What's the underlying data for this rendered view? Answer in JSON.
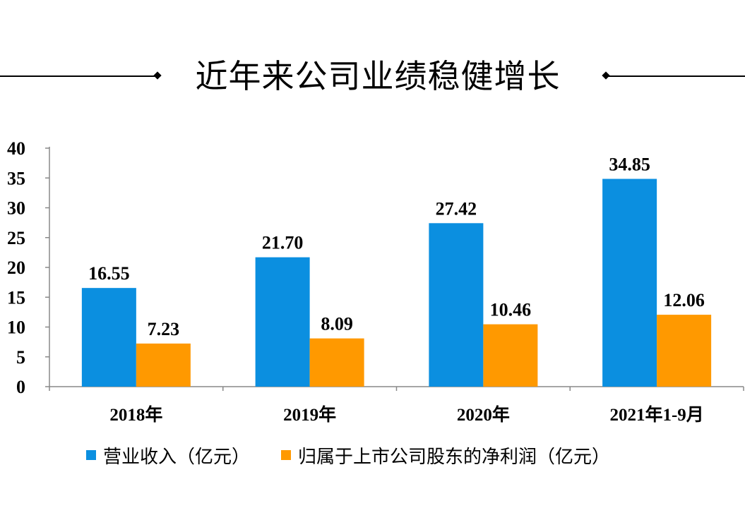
{
  "title": "近年来公司业绩稳健增长",
  "colors": {
    "revenue": "#0b8fe0",
    "profit": "#ff9900",
    "axis": "#888888"
  },
  "chart_data": {
    "type": "bar",
    "categories": [
      "2018年",
      "2019年",
      "2020年",
      "2021年1-9月"
    ],
    "series": [
      {
        "name": "营业收入（亿元）",
        "values": [
          16.55,
          21.7,
          27.42,
          34.85
        ],
        "labels": [
          "16.55",
          "21.70",
          "27.42",
          "34.85"
        ]
      },
      {
        "name": "归属于上市公司股东的净利润（亿元）",
        "values": [
          7.23,
          8.09,
          10.46,
          12.06
        ],
        "labels": [
          "7.23",
          "8.09",
          "10.46",
          "12.06"
        ]
      }
    ],
    "ylim": [
      0,
      40
    ],
    "yticks": [
      "0",
      "5",
      "10",
      "15",
      "20",
      "25",
      "30",
      "35",
      "40"
    ],
    "grid": false,
    "legend_position": "bottom"
  }
}
